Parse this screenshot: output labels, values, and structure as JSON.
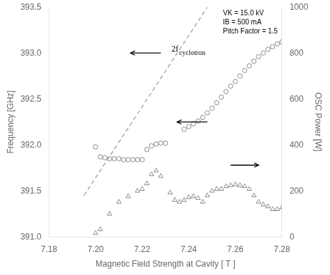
{
  "chart_data": {
    "type": "scatter",
    "xlabel": "Magnetic Field Strength at Cavity [ T ]",
    "ylabel": "Frequency [GHz]",
    "y2label": "OSC Power [W]",
    "xlim": [
      7.18,
      7.28
    ],
    "xticks": [
      7.18,
      {
        "value": 7.2,
        "label": "7.20"
      },
      7.22,
      7.24,
      7.26,
      7.28
    ],
    "ylim": [
      391.0,
      393.5
    ],
    "yticks": [
      {
        "value": 391.0,
        "label": "391.0"
      },
      391.5,
      {
        "value": 392.0,
        "label": "392.0"
      },
      392.5,
      {
        "value": 393.0,
        "label": "393.0"
      },
      393.5
    ],
    "y2lim": [
      0,
      1000
    ],
    "y2ticks": [
      0,
      200,
      400,
      600,
      800,
      1000
    ],
    "grid": false,
    "series": [
      {
        "type": "line",
        "line_style": "dashed",
        "color": "#aaaaaa",
        "x": [
          7.195,
          7.248
        ],
        "values": [
          391.45,
          393.5
        ]
      },
      {
        "type": "scatter",
        "marker": "circle",
        "color": "#888888",
        "x": [
          7.2,
          7.202,
          7.204,
          7.206,
          7.208,
          7.21,
          7.212,
          7.214,
          7.216,
          7.218,
          7.22,
          7.222,
          7.224,
          7.226,
          7.228,
          7.23
        ],
        "values": [
          391.98,
          391.87,
          391.86,
          391.85,
          391.85,
          391.85,
          391.84,
          391.84,
          391.84,
          391.84,
          391.84,
          391.95,
          391.99,
          392.01,
          392.02,
          392.02
        ]
      },
      {
        "type": "scatter",
        "marker": "circle",
        "color": "#888888",
        "x": [
          7.238,
          7.24,
          7.242,
          7.244,
          7.246,
          7.248,
          7.25,
          7.252,
          7.254,
          7.256,
          7.258,
          7.26,
          7.262,
          7.264,
          7.266,
          7.268,
          7.27,
          7.272,
          7.274,
          7.276,
          7.278,
          7.28
        ],
        "values": [
          392.17,
          392.2,
          392.23,
          392.26,
          392.3,
          392.35,
          392.4,
          392.46,
          392.52,
          392.58,
          392.64,
          392.69,
          392.75,
          392.81,
          392.86,
          392.91,
          392.96,
          393.0,
          393.04,
          393.07,
          393.1,
          393.12
        ]
      },
      {
        "type": "scatter",
        "marker": "triangle",
        "color": "#888888",
        "x": [
          7.2,
          7.202,
          7.206,
          7.21,
          7.214,
          7.218,
          7.22,
          7.222,
          7.224,
          7.226,
          7.228,
          7.232,
          7.234,
          7.236,
          7.238,
          7.24,
          7.242,
          7.244,
          7.246,
          7.248,
          7.25,
          7.252,
          7.254,
          7.256,
          7.258,
          7.26,
          7.262,
          7.264,
          7.266,
          7.268,
          7.27,
          7.272,
          7.274,
          7.276,
          7.278,
          7.28
        ],
        "values": [
          391.04,
          391.08,
          391.25,
          391.38,
          391.44,
          391.5,
          391.52,
          391.58,
          391.68,
          391.72,
          391.66,
          391.48,
          391.4,
          391.38,
          391.4,
          391.43,
          391.44,
          391.42,
          391.38,
          391.45,
          391.5,
          391.52,
          391.52,
          391.55,
          391.56,
          391.57,
          391.56,
          391.55,
          391.52,
          391.45,
          391.38,
          391.35,
          391.33,
          391.3,
          391.3,
          391.32
        ]
      }
    ],
    "annotation": [
      "VK = 15.0 kV",
      "IB = 500 mA",
      "Pitch Factor = 1.5"
    ],
    "label_2f": {
      "text": "2f",
      "subscript": "cyclotron",
      "x": 7.232,
      "y": 393.0
    },
    "arrows": [
      {
        "x_start": 7.228,
        "x_end": 7.215,
        "y": 393.0
      },
      {
        "x_start": 7.248,
        "x_end": 7.235,
        "y": 392.25
      },
      {
        "x_start": 7.258,
        "x_end": 7.27,
        "y": 391.78
      }
    ]
  }
}
